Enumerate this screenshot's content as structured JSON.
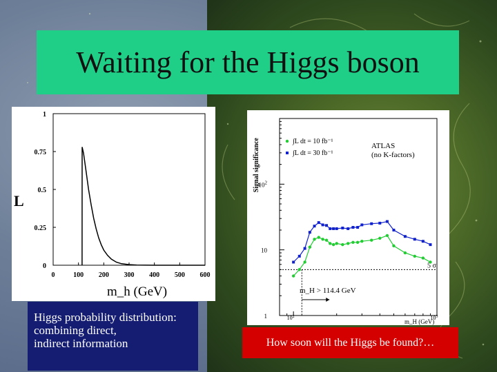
{
  "slide": {
    "title": "Waiting for the Higgs boson",
    "side_label": "L",
    "caption_left": [
      "Higgs probability distribution:",
      "combining direct,",
      "indirect information"
    ],
    "caption_right": "How soon will the Higgs be found?…"
  },
  "colors": {
    "title_bg": "#1fcf88",
    "caption_left_bg": "#141d72",
    "caption_right_bg": "#d40000",
    "green": "#22cc33",
    "blue": "#1122cc"
  },
  "chart_data": [
    {
      "type": "line",
      "xlabel": "m_h (GeV)",
      "ylabel": "",
      "xlim": [
        0,
        600
      ],
      "ylim": [
        0,
        1
      ],
      "x_ticks": [
        "0",
        "100",
        "200",
        "300",
        "400",
        "500",
        "600"
      ],
      "y_ticks": [
        "0",
        "0.25",
        "0.5",
        "0.75",
        "1"
      ],
      "series": [
        {
          "x": [
            114.4,
            114.5,
            120,
            130,
            140,
            150,
            160,
            170,
            180,
            190,
            200,
            215,
            230,
            250,
            270,
            300,
            330,
            400,
            500,
            600
          ],
          "values": [
            0,
            0.78,
            0.74,
            0.62,
            0.5,
            0.4,
            0.31,
            0.24,
            0.18,
            0.135,
            0.1,
            0.065,
            0.04,
            0.02,
            0.01,
            0.004,
            0.001,
            0,
            0,
            0
          ]
        }
      ]
    },
    {
      "type": "line",
      "log_scale": true,
      "xlabel": "m_H (GeV)",
      "ylabel": "Signal significance",
      "xlim": [
        80,
        1000
      ],
      "ylim": [
        1,
        1000
      ],
      "x_ticks": [
        "10^2",
        "10^3"
      ],
      "y_ticks": [
        "1",
        "10",
        "10^2"
      ],
      "annotations": [
        "ATLAS",
        "(no K-factors)",
        "5 σ",
        "m_H > 114.4 GeV"
      ],
      "legend_position": "top-left",
      "series": [
        {
          "name": "∫L dt = 10 fb⁻¹",
          "x": [
            100,
            110,
            120,
            130,
            140,
            150,
            160,
            170,
            180,
            190,
            200,
            220,
            240,
            260,
            280,
            300,
            350,
            400,
            450,
            500,
            600,
            700,
            800,
            900
          ],
          "values": [
            4.0,
            5.0,
            6.5,
            11.0,
            14.5,
            15.5,
            14.5,
            14.0,
            12.5,
            12.0,
            12.5,
            12.0,
            12.5,
            13.0,
            13.0,
            13.5,
            14.0,
            15.0,
            16.5,
            11.5,
            9.0,
            8.0,
            7.5,
            6.5
          ]
        },
        {
          "name": "∫L dt = 30 fb⁻¹",
          "x": [
            100,
            110,
            120,
            130,
            140,
            150,
            160,
            170,
            180,
            190,
            200,
            220,
            240,
            260,
            280,
            300,
            350,
            400,
            450,
            500,
            600,
            700,
            800,
            900
          ],
          "values": [
            6.5,
            8.0,
            10.5,
            18.5,
            23.0,
            26.0,
            24.0,
            23.5,
            21.0,
            21.0,
            21.0,
            21.5,
            21.0,
            22.0,
            22.0,
            24.0,
            25.0,
            25.5,
            27.0,
            20.0,
            16.0,
            14.5,
            13.5,
            12.0
          ]
        }
      ],
      "reference_line": {
        "label": "5 σ",
        "y": 5
      },
      "marker_x": 114.4
    }
  ]
}
